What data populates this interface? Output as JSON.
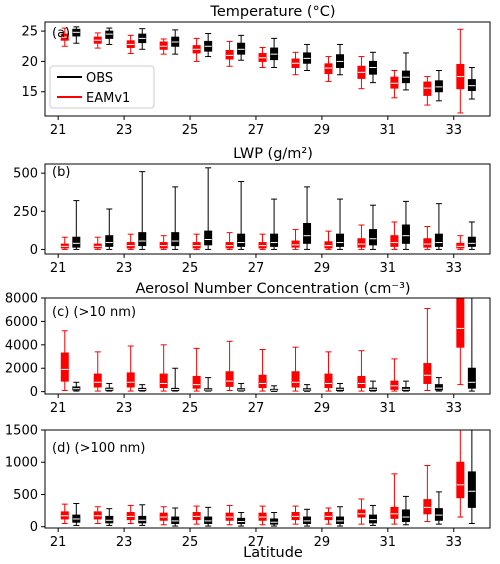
{
  "chart_data": [
    {
      "type": "boxplot",
      "panel_tag": "(a)",
      "title": "Temperature (°C)",
      "xlabel": "",
      "ylim": [
        11,
        26.5
      ],
      "yticks": [
        15,
        20,
        25
      ],
      "ytick_labels": [
        "15",
        "20",
        "25"
      ],
      "xticks": [
        21,
        23,
        25,
        27,
        29,
        31,
        33
      ],
      "xtick_labels": [
        "21",
        "23",
        "25",
        "27",
        "29",
        "31",
        "33"
      ],
      "legend": {
        "position": "center-left",
        "entries": [
          {
            "name": "OBS",
            "color": "#000000"
          },
          {
            "name": "EAMv1",
            "color": "#ff0000"
          }
        ]
      },
      "series": [
        {
          "name": "EAMv1",
          "color": "#ff0000",
          "x": [
            21.2,
            22.2,
            23.2,
            24.2,
            25.2,
            26.2,
            27.2,
            28.2,
            29.2,
            30.2,
            31.2,
            32.2,
            33.2
          ],
          "boxes": [
            [
              22.5,
              23.5,
              24.0,
              24.5,
              25.5
            ],
            [
              22.2,
              23.0,
              23.5,
              24.0,
              24.7
            ],
            [
              21.3,
              22.3,
              22.8,
              23.4,
              24.3
            ],
            [
              21.2,
              22.0,
              22.5,
              23.2,
              23.7
            ],
            [
              20.0,
              21.4,
              22.0,
              22.6,
              23.8
            ],
            [
              19.2,
              20.4,
              21.0,
              21.8,
              23.3
            ],
            [
              19.0,
              20.0,
              20.6,
              21.3,
              22.3
            ],
            [
              17.8,
              19.0,
              19.7,
              20.4,
              21.5
            ],
            [
              16.7,
              18.0,
              18.9,
              19.6,
              20.8
            ],
            [
              15.5,
              17.2,
              18.2,
              19.2,
              20.8
            ],
            [
              14.0,
              15.6,
              16.4,
              17.4,
              18.5
            ],
            [
              12.8,
              14.4,
              15.6,
              16.6,
              17.5
            ],
            [
              11.5,
              15.5,
              17.5,
              19.5,
              25.3
            ]
          ]
        },
        {
          "name": "OBS",
          "color": "#000000",
          "x": [
            21.55,
            22.55,
            23.55,
            24.55,
            25.55,
            26.55,
            27.55,
            28.55,
            29.55,
            30.55,
            31.55,
            32.55,
            33.55
          ],
          "boxes": [
            [
              23.0,
              24.2,
              24.8,
              25.3,
              25.7
            ],
            [
              22.8,
              23.8,
              24.5,
              25.0,
              25.5
            ],
            [
              22.0,
              23.1,
              23.8,
              24.5,
              25.4
            ],
            [
              21.2,
              22.5,
              23.2,
              24.0,
              25.2
            ],
            [
              20.8,
              21.7,
              22.5,
              23.3,
              24.6
            ],
            [
              20.2,
              21.2,
              22.0,
              23.0,
              24.3
            ],
            [
              19.0,
              20.3,
              21.2,
              22.2,
              23.8
            ],
            [
              18.5,
              19.7,
              20.5,
              21.4,
              22.8
            ],
            [
              17.8,
              19.0,
              20.0,
              21.1,
              22.8
            ],
            [
              16.5,
              17.9,
              19.0,
              20.0,
              21.5
            ],
            [
              15.3,
              16.5,
              17.4,
              18.4,
              21.4
            ],
            [
              13.5,
              15.0,
              15.8,
              16.8,
              18.5
            ],
            [
              13.8,
              15.2,
              16.0,
              17.0,
              19.0
            ]
          ]
        }
      ]
    },
    {
      "type": "boxplot",
      "panel_tag": "(b)",
      "title": "LWP (g/m²)",
      "xlabel": "",
      "ylim": [
        -30,
        560
      ],
      "yticks": [
        0,
        250,
        500
      ],
      "ytick_labels": [
        "0",
        "250",
        "500"
      ],
      "xticks": [
        21,
        23,
        25,
        27,
        29,
        31,
        33
      ],
      "xtick_labels": [
        "21",
        "23",
        "25",
        "27",
        "29",
        "31",
        "33"
      ],
      "series": [
        {
          "name": "EAMv1",
          "color": "#ff0000",
          "x": [
            21.2,
            22.2,
            23.2,
            24.2,
            25.2,
            26.2,
            27.2,
            28.2,
            29.2,
            30.2,
            31.2,
            32.2,
            33.2
          ],
          "boxes": [
            [
              0,
              10,
              20,
              35,
              80
            ],
            [
              0,
              10,
              20,
              35,
              80
            ],
            [
              0,
              10,
              25,
              45,
              100
            ],
            [
              0,
              10,
              25,
              45,
              90
            ],
            [
              0,
              10,
              25,
              45,
              100
            ],
            [
              0,
              10,
              25,
              45,
              110
            ],
            [
              0,
              10,
              25,
              45,
              100
            ],
            [
              0,
              15,
              30,
              55,
              130
            ],
            [
              0,
              10,
              25,
              50,
              120
            ],
            [
              0,
              15,
              35,
              70,
              160
            ],
            [
              0,
              20,
              45,
              90,
              180
            ],
            [
              0,
              15,
              35,
              70,
              150
            ],
            [
              0,
              10,
              20,
              40,
              90
            ]
          ]
        },
        {
          "name": "OBS",
          "color": "#000000",
          "x": [
            21.55,
            22.55,
            23.55,
            24.55,
            25.55,
            26.55,
            27.55,
            28.55,
            29.55,
            30.55,
            31.55,
            32.55,
            33.55
          ],
          "boxes": [
            [
              0,
              15,
              40,
              80,
              320
            ],
            [
              0,
              20,
              45,
              90,
              265
            ],
            [
              0,
              25,
              55,
              110,
              510
            ],
            [
              0,
              25,
              55,
              110,
              410
            ],
            [
              0,
              30,
              65,
              120,
              535
            ],
            [
              0,
              20,
              45,
              100,
              445
            ],
            [
              0,
              20,
              45,
              100,
              330
            ],
            [
              0,
              40,
              90,
              170,
              410
            ],
            [
              0,
              20,
              45,
              100,
              330
            ],
            [
              0,
              30,
              70,
              130,
              290
            ],
            [
              0,
              40,
              90,
              160,
              315
            ],
            [
              0,
              20,
              45,
              100,
              300
            ],
            [
              0,
              20,
              40,
              80,
              180
            ]
          ]
        }
      ]
    },
    {
      "type": "boxplot",
      "panel_tag": "(c) (>10 nm)",
      "title": "Aerosol Number Concentration (cm⁻³)",
      "xlabel": "",
      "ylim": [
        -200,
        8000
      ],
      "yticks": [
        0,
        2000,
        4000,
        6000,
        8000
      ],
      "ytick_labels": [
        "0",
        "2000",
        "4000",
        "6000",
        "8000"
      ],
      "xticks": [
        21,
        23,
        25,
        27,
        29,
        31,
        33
      ],
      "xtick_labels": [
        "21",
        "23",
        "25",
        "27",
        "29",
        "31",
        "33"
      ],
      "series": [
        {
          "name": "EAMv1",
          "color": "#ff0000",
          "x": [
            21.2,
            22.2,
            23.2,
            24.2,
            25.2,
            26.2,
            27.2,
            28.2,
            29.2,
            30.2,
            31.2,
            32.2,
            33.2
          ],
          "boxes": [
            [
              100,
              900,
              1900,
              3300,
              5200
            ],
            [
              50,
              400,
              800,
              1500,
              3400
            ],
            [
              50,
              400,
              800,
              1600,
              3900
            ],
            [
              50,
              350,
              700,
              1500,
              4000
            ],
            [
              50,
              300,
              600,
              1300,
              3700
            ],
            [
              100,
              450,
              900,
              1700,
              4300
            ],
            [
              50,
              350,
              700,
              1400,
              3600
            ],
            [
              50,
              400,
              800,
              1700,
              3800
            ],
            [
              50,
              350,
              700,
              1500,
              3400
            ],
            [
              50,
              350,
              700,
              1300,
              3500
            ],
            [
              50,
              200,
              500,
              900,
              2800
            ],
            [
              100,
              700,
              1400,
              2400,
              7100
            ],
            [
              600,
              3800,
              5400,
              8000,
              8000
            ]
          ]
        },
        {
          "name": "OBS",
          "color": "#000000",
          "x": [
            21.55,
            22.55,
            23.55,
            24.55,
            25.55,
            26.55,
            27.55,
            28.55,
            29.55,
            30.55,
            31.55,
            32.55,
            33.55
          ],
          "boxes": [
            [
              50,
              150,
              250,
              400,
              800
            ],
            [
              50,
              120,
              200,
              300,
              700
            ],
            [
              50,
              100,
              180,
              280,
              600
            ],
            [
              50,
              100,
              180,
              280,
              2000
            ],
            [
              50,
              100,
              150,
              250,
              1200
            ],
            [
              50,
              100,
              150,
              250,
              700
            ],
            [
              20,
              80,
              120,
              200,
              500
            ],
            [
              30,
              100,
              150,
              250,
              600
            ],
            [
              50,
              100,
              200,
              300,
              700
            ],
            [
              50,
              100,
              200,
              300,
              900
            ],
            [
              50,
              100,
              200,
              350,
              900
            ],
            [
              50,
              150,
              300,
              600,
              1200
            ],
            [
              50,
              300,
              800,
              2000,
              8000
            ]
          ]
        }
      ]
    },
    {
      "type": "boxplot",
      "panel_tag": "(d) (>100 nm)",
      "title": "",
      "xlabel": "Latitude",
      "ylim": [
        -20,
        1500
      ],
      "yticks": [
        0,
        500,
        1000,
        1500
      ],
      "ytick_labels": [
        "0",
        "500",
        "1000",
        "1500"
      ],
      "xticks": [
        21,
        23,
        25,
        27,
        29,
        31,
        33
      ],
      "xtick_labels": [
        "21",
        "23",
        "25",
        "27",
        "29",
        "31",
        "33"
      ],
      "series": [
        {
          "name": "EAMv1",
          "color": "#ff0000",
          "x": [
            21.2,
            22.2,
            23.2,
            24.2,
            25.2,
            26.2,
            27.2,
            28.2,
            29.2,
            30.2,
            31.2,
            32.2,
            33.2
          ],
          "boxes": [
            [
              50,
              120,
              170,
              230,
              350
            ],
            [
              50,
              120,
              170,
              230,
              310
            ],
            [
              50,
              110,
              160,
              220,
              330
            ],
            [
              30,
              100,
              150,
              210,
              310
            ],
            [
              40,
              110,
              160,
              220,
              320
            ],
            [
              30,
              100,
              150,
              210,
              330
            ],
            [
              30,
              100,
              150,
              210,
              320
            ],
            [
              40,
              110,
              160,
              220,
              320
            ],
            [
              40,
              110,
              160,
              220,
              290
            ],
            [
              40,
              150,
              200,
              260,
              430
            ],
            [
              40,
              130,
              200,
              300,
              820
            ],
            [
              80,
              200,
              300,
              420,
              950
            ],
            [
              150,
              450,
              650,
              1000,
              1500
            ]
          ]
        },
        {
          "name": "OBS",
          "color": "#000000",
          "x": [
            21.55,
            22.55,
            23.55,
            24.55,
            25.55,
            26.55,
            27.55,
            28.55,
            29.55,
            30.55,
            31.55,
            32.55,
            33.55
          ],
          "boxes": [
            [
              20,
              70,
              120,
              180,
              360
            ],
            [
              20,
              60,
              100,
              160,
              280
            ],
            [
              20,
              60,
              100,
              160,
              340
            ],
            [
              10,
              50,
              90,
              150,
              290
            ],
            [
              10,
              50,
              90,
              150,
              300
            ],
            [
              10,
              50,
              80,
              130,
              220
            ],
            [
              10,
              40,
              70,
              120,
              220
            ],
            [
              10,
              50,
              90,
              150,
              270
            ],
            [
              10,
              50,
              90,
              150,
              310
            ],
            [
              20,
              60,
              110,
              180,
              330
            ],
            [
              30,
              80,
              150,
              260,
              470
            ],
            [
              40,
              100,
              180,
              280,
              540
            ],
            [
              50,
              300,
              550,
              850,
              1500
            ]
          ]
        }
      ]
    }
  ]
}
